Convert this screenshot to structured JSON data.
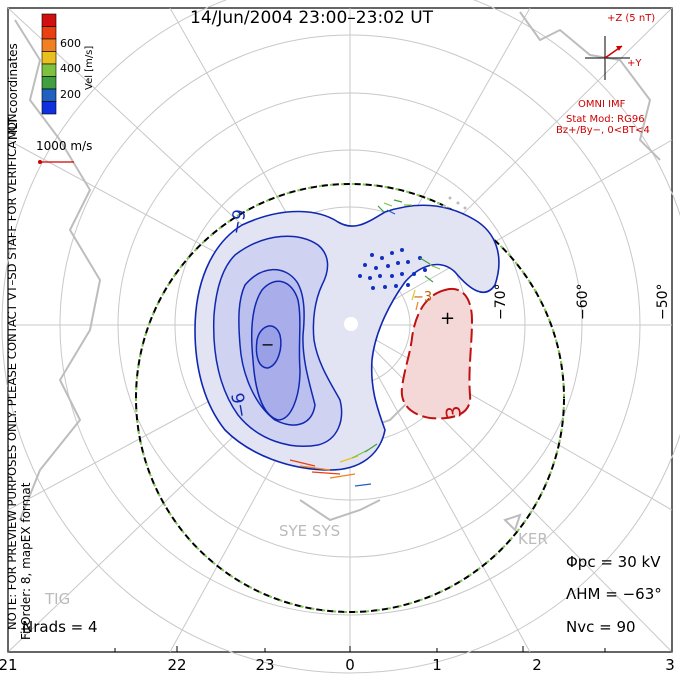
{
  "title": "14/Jun/2004 23:00–23:02 UT",
  "colorbar": {
    "title": "Vel [m/s]",
    "ticks": [
      "600",
      "400",
      "200"
    ],
    "colors": [
      "#d01010",
      "#e84010",
      "#f08020",
      "#e8c020",
      "#80c040",
      "#40a040",
      "#2060c0",
      "#1030e0"
    ]
  },
  "coords_label": "MLT coordinates",
  "reference_vector": "1000 m/s",
  "side_note": "NOTE: FOR PREVIEW PURPOSES ONLY. PLEASE CONTACT VT–SD STAFF FOR VERIFICATION.",
  "fit_label": "FitOrder: 8, mapEX format",
  "imf": {
    "z_label": "+Z (5 nT)",
    "y_label": "+Y",
    "source": "OMNI IMF",
    "model": "Stat Mod: RG96",
    "condition": "Bz+/By−, 0<BT<4"
  },
  "mlt_labels": [
    "21",
    "22",
    "23",
    "0",
    "1",
    "2",
    "3"
  ],
  "lat_labels": [
    "−70°",
    "−60°",
    "−50°"
  ],
  "contour_labels": [
    "−9",
    "−6",
    "−3",
    "3",
    "−",
    "+"
  ],
  "stats": {
    "phi_pc": "Φpc  =  30 kV",
    "lambda_hm": "ΛHM  =  −63°",
    "n_vc": "Nvc  =  90",
    "n_rads": "Nrads  =  4"
  },
  "sites": [
    "SYE SYS",
    "KER",
    "TIG"
  ]
}
